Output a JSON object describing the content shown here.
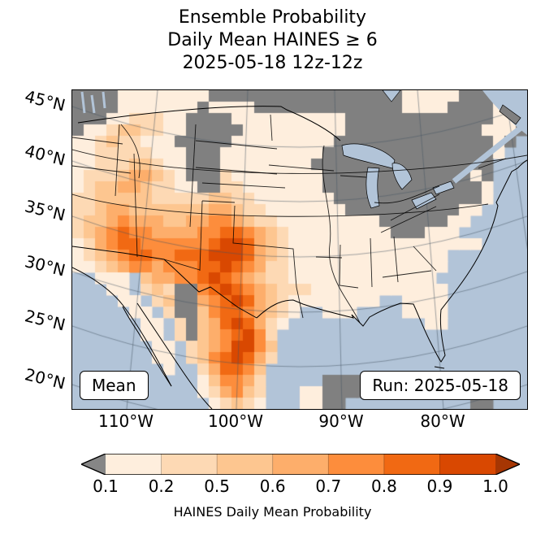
{
  "title": {
    "line1": "Ensemble Probability",
    "line2": "Daily Mean HAINES ≥ 6",
    "line3": "2025-05-18 12z-12z"
  },
  "map": {
    "annotation_left": "Mean",
    "annotation_right": "Run: 2025-05-18",
    "lat_labels": [
      "45°N",
      "40°N",
      "35°N",
      "30°N",
      "25°N",
      "20°N"
    ],
    "lon_labels": [
      "110°W",
      "100°W",
      "90°W",
      "80°W"
    ],
    "ocean_color": "#b2c4d8",
    "masked_color": "#808080"
  },
  "colorbar": {
    "label": "HAINES Daily Mean Probability",
    "tick_labels": [
      "0.1",
      "0.2",
      "0.5",
      "0.6",
      "0.7",
      "0.8",
      "0.9",
      "1.0"
    ],
    "under_color": "#868686",
    "over_color": "#a63603"
  },
  "chart_data": {
    "type": "heatmap",
    "title": "Ensemble Probability Daily Mean HAINES ≥ 6 2025-05-18 12z-12z",
    "variable": "HAINES Daily Mean Probability",
    "threshold": "HAINES ≥ 6",
    "statistic": "Mean",
    "run": "2025-05-18",
    "valid_period": "12z-12z",
    "levels": [
      0.1,
      0.2,
      0.5,
      0.6,
      0.7,
      0.8,
      0.9,
      1.0
    ],
    "colors": [
      "#feeedd",
      "#fdd9b4",
      "#fdc690",
      "#fdae6b",
      "#fd8d3c",
      "#f16913",
      "#d94801"
    ],
    "under_color_masked_land": "#808080",
    "over_color": "#a63603",
    "lat_ticks": [
      "45°N",
      "40°N",
      "35°N",
      "30°N",
      "25°N",
      "20°N"
    ],
    "lon_ticks": [
      "110°W",
      "100°W",
      "90°W",
      "80°W"
    ],
    "grid_legend": {
      ".": "water",
      "g": "probability < 0.1 (gray masked land)",
      "1": "0.1-0.2",
      "2": "0.2-0.5",
      "3": "0.5-0.6",
      "4": "0.6-0.7",
      "5": "0.7-0.8",
      "6": "0.8-0.9",
      "7": "0.9-1.0"
    },
    "grid_rows": [
      "gggg11111111ggggggggggggggggg11111ggg1gg",
      "gggg1111111g1111ggggggggggggg1111gggg11g",
      "ggg1122211gggg1111111111ggggggggggggg11g",
      "g112332211ggggg111111111gggggggggggg111g",
      "112322111ggggg111111111gggggggggggggg1g.",
      "1122222111ggg111111111ggggggggggggggg1..",
      "1122233211ggg11111111gggggggggggggggg...",
      "1222344321ggg211111111ggggggggggggg1g...",
      "12334432211gg221111111gggggggggggggg1...",
      "22333332222233221111111ggggggggggggg1...",
      "223443333333443221111111gggggggggg11....",
      "233454443344554322111111111gggggg11.....",
      "2345655444455665432111111111ggg111......",
      "124566555555677643211111111111111111....",
      "123456655666777643211111111111111.......",
      "112345545556676542211111111111111.......",
      "..111.34455676543221111111111111........",
      "...11.232gg5676543222111111111111.......",
      "....11.23gg4567643211111111..1111.......",
      ".....11.2gg356654321..111....1111.......",
      "......11.2g34676421............11.......",
      "......11.2g3456752......................",
      ".......11.23457753......................",
      ".......11.23567642......................",
      "........1..246653.......................",
      "...........135542.....gggg......ggg.....",
      "...........124532...11gggg.......gggg...",
      "............12321...11gg...........gg..."
    ],
    "notes": "Highest probabilities (0.8-1.0) over New Mexico / west Texas southward into north-central Mexico; secondary maxima over Arizona and Nevada. Gray = masked / < 0.1."
  }
}
